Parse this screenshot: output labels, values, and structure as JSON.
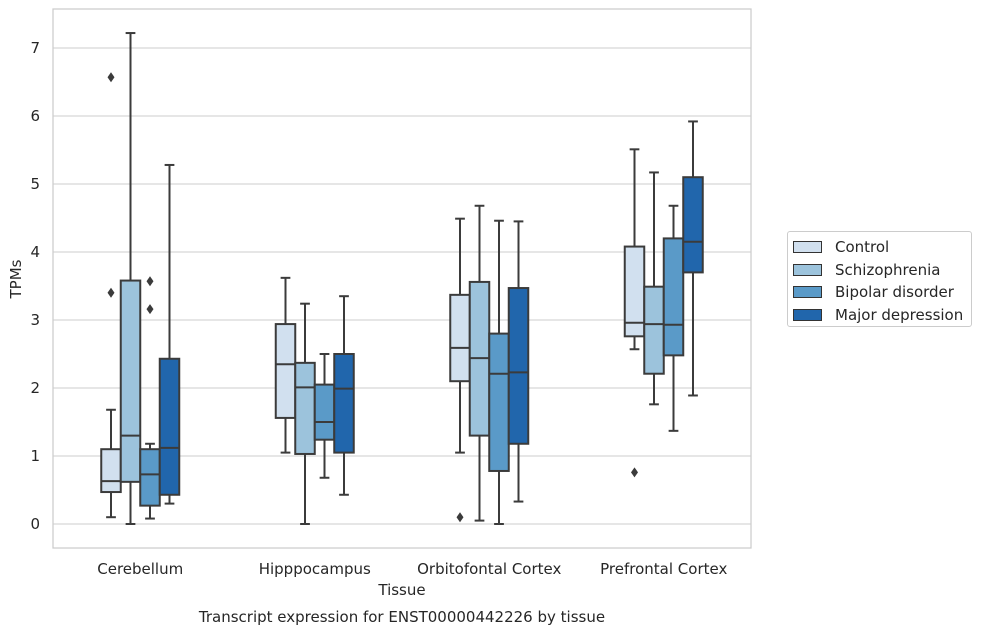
{
  "chart_data": {
    "type": "box",
    "title": "Transcript expression for ENST00000442226 by tissue",
    "xlabel": "Tissue",
    "ylabel": "TPMs",
    "ylim": [
      -0.35,
      7.6
    ],
    "yticks": [
      0,
      1,
      2,
      3,
      4,
      5,
      6,
      7
    ],
    "grid": true,
    "legend_position": "right",
    "categories": [
      "Cerebellum",
      "Hipppocampus",
      "Orbitofontal Cortex",
      "Prefrontal Cortex"
    ],
    "series": [
      {
        "name": "Control",
        "color": "#d1e0ef",
        "boxes": [
          {
            "whislo": 0.1,
            "q1": 0.47,
            "med": 0.63,
            "q3": 1.1,
            "whishi": 1.68,
            "fliers": [
              3.4,
              6.57
            ]
          },
          {
            "whislo": 1.05,
            "q1": 1.56,
            "med": 2.35,
            "q3": 2.94,
            "whishi": 3.62,
            "fliers": []
          },
          {
            "whislo": 1.05,
            "q1": 2.1,
            "med": 2.59,
            "q3": 3.37,
            "whishi": 4.49,
            "fliers": [
              0.1
            ]
          },
          {
            "whislo": 2.57,
            "q1": 2.76,
            "med": 2.96,
            "q3": 4.08,
            "whishi": 5.51,
            "fliers": [
              0.76
            ]
          }
        ]
      },
      {
        "name": "Schizophrenia",
        "color": "#9cc3dc",
        "boxes": [
          {
            "whislo": 0.0,
            "q1": 0.62,
            "med": 1.3,
            "q3": 3.58,
            "whishi": 7.22,
            "fliers": []
          },
          {
            "whislo": 0.0,
            "q1": 1.03,
            "med": 2.01,
            "q3": 2.37,
            "whishi": 3.24,
            "fliers": []
          },
          {
            "whislo": 0.05,
            "q1": 1.3,
            "med": 2.44,
            "q3": 3.56,
            "whishi": 4.68,
            "fliers": []
          },
          {
            "whislo": 1.76,
            "q1": 2.21,
            "med": 2.94,
            "q3": 3.49,
            "whishi": 5.17,
            "fliers": []
          }
        ]
      },
      {
        "name": "Bipolar disorder",
        "color": "#5a9ac8",
        "boxes": [
          {
            "whislo": 0.08,
            "q1": 0.27,
            "med": 0.73,
            "q3": 1.1,
            "whishi": 1.18,
            "fliers": [
              3.16,
              3.57
            ]
          },
          {
            "whislo": 0.68,
            "q1": 1.24,
            "med": 1.5,
            "q3": 2.05,
            "whishi": 2.5,
            "fliers": []
          },
          {
            "whislo": 0.0,
            "q1": 0.78,
            "med": 2.21,
            "q3": 2.8,
            "whishi": 4.46,
            "fliers": []
          },
          {
            "whislo": 1.37,
            "q1": 2.48,
            "med": 2.93,
            "q3": 4.2,
            "whishi": 4.68,
            "fliers": []
          }
        ]
      },
      {
        "name": "Major depression",
        "color": "#2166ac",
        "boxes": [
          {
            "whislo": 0.3,
            "q1": 0.43,
            "med": 1.12,
            "q3": 2.43,
            "whishi": 5.28,
            "fliers": []
          },
          {
            "whislo": 0.43,
            "q1": 1.05,
            "med": 1.99,
            "q3": 2.5,
            "whishi": 3.35,
            "fliers": []
          },
          {
            "whislo": 0.33,
            "q1": 1.18,
            "med": 2.23,
            "q3": 3.47,
            "whishi": 4.45,
            "fliers": []
          },
          {
            "whislo": 1.89,
            "q1": 3.7,
            "med": 4.15,
            "q3": 5.1,
            "whishi": 5.92,
            "fliers": []
          }
        ]
      }
    ]
  },
  "legend": {
    "items": [
      {
        "label": "Control",
        "color": "#d1e0ef"
      },
      {
        "label": "Schizophrenia",
        "color": "#9cc3dc"
      },
      {
        "label": "Bipolar disorder",
        "color": "#5a9ac8"
      },
      {
        "label": "Major depression",
        "color": "#2166ac"
      }
    ]
  }
}
